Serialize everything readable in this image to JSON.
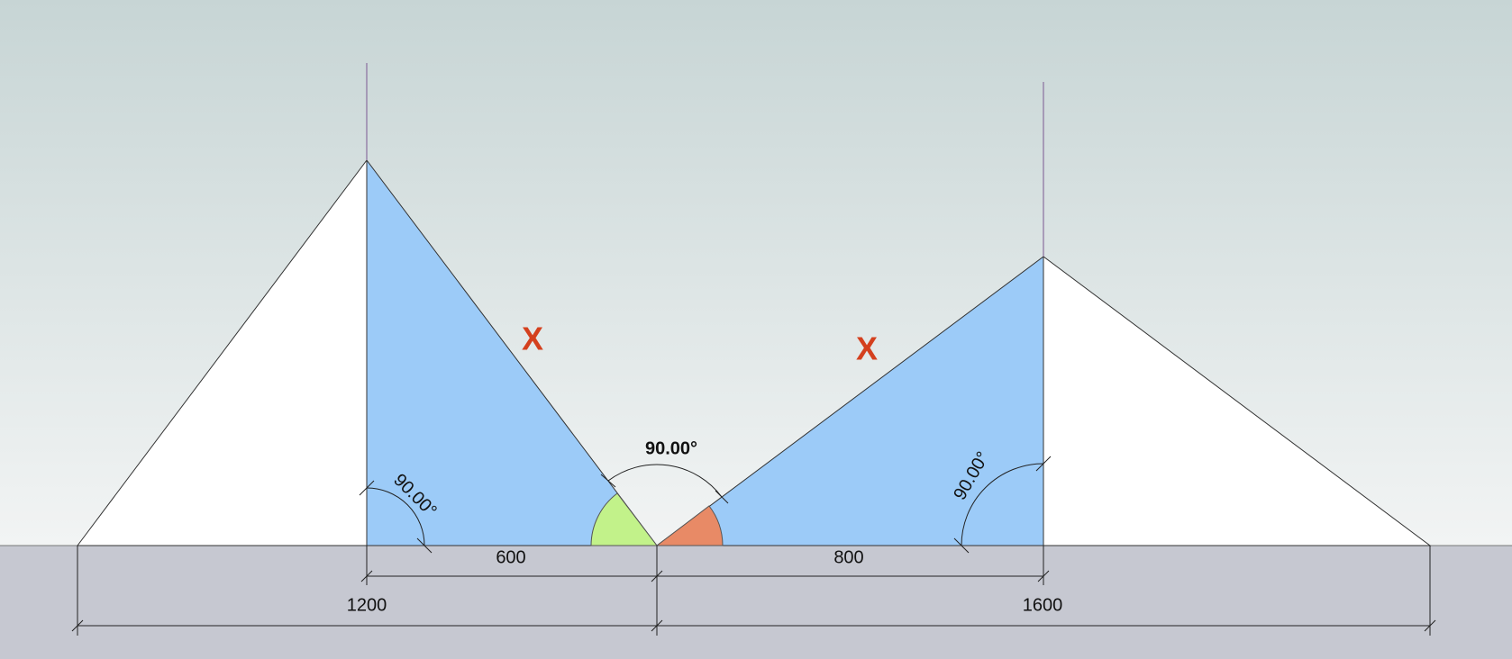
{
  "side_labels": [
    "X",
    "X"
  ],
  "angle_labels": {
    "apex": "90.00°",
    "left": "90.00°",
    "right": "90.00°"
  },
  "dimensions": [
    "600",
    "800",
    "1200",
    "1600"
  ]
}
